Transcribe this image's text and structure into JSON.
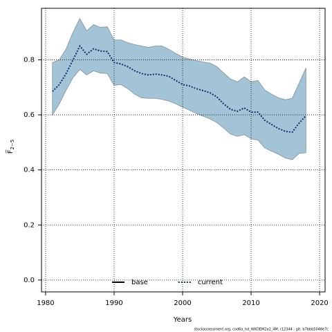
{
  "chart_data": {
    "type": "line",
    "xlabel": "Years",
    "ylabel": "F̅",
    "ylabel_sub": "2−5",
    "footer": "stockassessment.org, cod6a_hd_WKDEM2a2_4M, r12344 , git: b7bbb5048e7c",
    "x": [
      1981,
      1982,
      1983,
      1984,
      1985,
      1986,
      1987,
      1988,
      1989,
      1990,
      1991,
      1992,
      1993,
      1994,
      1995,
      1996,
      1997,
      1998,
      1999,
      2000,
      2001,
      2002,
      2003,
      2004,
      2005,
      2006,
      2007,
      2008,
      2009,
      2010,
      2011,
      2012,
      2013,
      2014,
      2015,
      2016,
      2017,
      2018
    ],
    "series": [
      {
        "name": "current",
        "color": "#08306b",
        "values": [
          0.685,
          0.71,
          0.75,
          0.8,
          0.85,
          0.82,
          0.84,
          0.832,
          0.83,
          0.79,
          0.785,
          0.775,
          0.76,
          0.75,
          0.745,
          0.748,
          0.745,
          0.74,
          0.725,
          0.71,
          0.705,
          0.695,
          0.688,
          0.68,
          0.665,
          0.64,
          0.62,
          0.613,
          0.625,
          0.61,
          0.61,
          0.58,
          0.565,
          0.55,
          0.54,
          0.537,
          0.57,
          0.597
        ],
        "upper": [
          0.79,
          0.8,
          0.84,
          0.9,
          0.95,
          0.905,
          0.928,
          0.918,
          0.92,
          0.872,
          0.872,
          0.862,
          0.855,
          0.85,
          0.845,
          0.85,
          0.85,
          0.838,
          0.823,
          0.81,
          0.803,
          0.797,
          0.792,
          0.788,
          0.775,
          0.752,
          0.73,
          0.72,
          0.738,
          0.72,
          0.725,
          0.69,
          0.675,
          0.662,
          0.655,
          0.66,
          0.715,
          0.77
        ],
        "lower": [
          0.6,
          0.64,
          0.69,
          0.735,
          0.765,
          0.745,
          0.76,
          0.752,
          0.75,
          0.707,
          0.71,
          0.695,
          0.675,
          0.662,
          0.66,
          0.66,
          0.656,
          0.65,
          0.64,
          0.628,
          0.617,
          0.605,
          0.595,
          0.585,
          0.572,
          0.552,
          0.53,
          0.522,
          0.528,
          0.513,
          0.508,
          0.48,
          0.468,
          0.457,
          0.443,
          0.437,
          0.46,
          0.462
        ]
      }
    ],
    "band_color": "#a3c4d6",
    "legend": [
      {
        "name": "base",
        "color": "#000000",
        "dash": "solid"
      },
      {
        "name": "current",
        "color": "#08306b",
        "dash": "dotted"
      }
    ],
    "legend_position": "bottom",
    "xlim": [
      1979.4,
      2020.8
    ],
    "xticks": [
      1980,
      1990,
      2000,
      2010,
      2020
    ],
    "ylim": [
      -0.043,
      0.987
    ],
    "yticks": [
      {
        "value": 0,
        "label": "0.0"
      },
      0.2,
      0.4,
      0.6,
      0.8
    ],
    "grid": true
  }
}
